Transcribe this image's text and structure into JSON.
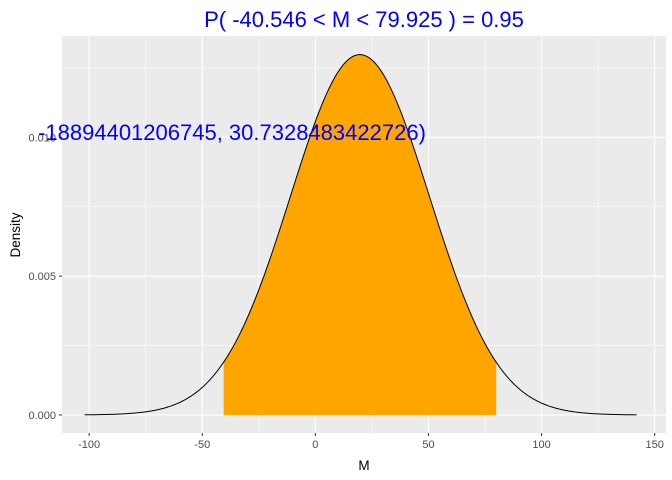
{
  "chart_data": {
    "type": "area",
    "title": "P( -40.546 < M <  79.925 ) = 0.95",
    "xlabel": "M",
    "ylabel": "Density",
    "annotation": "-18894401206745, 30.7328483422726)",
    "x_ticks": [
      -100,
      -50,
      0,
      50,
      100,
      150
    ],
    "x_tick_labels": [
      "-100",
      "-50",
      "0",
      "50",
      "100",
      "150"
    ],
    "y_ticks": [
      0.0,
      0.005,
      0.01
    ],
    "y_tick_labels": [
      "0.000",
      "0.005",
      "0.010"
    ],
    "xlim": [
      -112,
      155
    ],
    "ylim": [
      -0.00065,
      0.01365
    ],
    "grid": true,
    "distribution": {
      "family": "normal",
      "mean": 19.69,
      "sd": 30.73,
      "peak_density": 0.01298
    },
    "curve_range": [
      -102.0,
      142.0
    ],
    "shaded_interval": [
      -40.546,
      79.925
    ],
    "probability": 0.95,
    "colors": {
      "fill": "#FFA500",
      "curve": "#000000",
      "panel": "#EBEBEB",
      "grid": "#FFFFFF",
      "title": "#0000FF"
    }
  }
}
